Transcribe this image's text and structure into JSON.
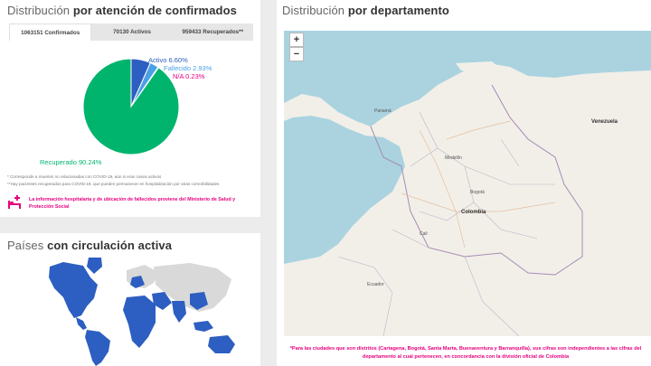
{
  "distribucion": {
    "title_light": "Distribución ",
    "title_bold": "por atención de confirmados",
    "tabs": [
      {
        "label": "1063151 Confirmados",
        "active": true
      },
      {
        "label": "70130 Activos",
        "active": false
      },
      {
        "label": "959433 Recuperados**",
        "active": false
      }
    ],
    "chart_data": {
      "type": "pie",
      "slices": [
        {
          "label": "Recuperado",
          "value": 90.24,
          "display": "Recuperado 90.24%",
          "color": "#00b46e"
        },
        {
          "label": "Activo",
          "value": 6.6,
          "display": "Activo 6.60%",
          "color": "#2d5ec1"
        },
        {
          "label": "Fallecido",
          "value": 2.93,
          "display": "Fallecido 2.93%",
          "color": "#4aa0e6"
        },
        {
          "label": "N/A",
          "value": 0.23,
          "display": "N/A 0.23%",
          "color": "#e6007e"
        }
      ]
    },
    "footnotes": [
      "* Corresponde a muertes no relacionadas con COVID-19, aún si eran casos activos",
      "**Hay pacientes recuperados para COVID-19, que pueden permanecer en hospitalización por otras comorbilidades"
    ],
    "info_text": "La información hospitalaria y de ubicación de fallecidos proviene del Ministerio de Salud y Protección Social",
    "info_icon": "hospital-bed-icon",
    "colors": {
      "accent": "#e6007e"
    }
  },
  "paises": {
    "title_light": "Países ",
    "title_bold": "con circulación activa",
    "map_colors": {
      "active": "#2d5ec1",
      "inactive": "#d9d9d9"
    }
  },
  "mapa": {
    "title_light": "Distribución ",
    "title_bold": "por departamento",
    "zoom_in": "+",
    "zoom_out": "−",
    "labels": {
      "venezuela": "Venezuela",
      "colombia": "Colombia",
      "panama": "Panamá",
      "ecuador": "Ecuador",
      "medellin": "Medellín",
      "cali": "Cali",
      "bogota": "Bogotá"
    },
    "footer": "*Para las ciudades que son distritos (Cartagena, Bogotá, Santa Marta, Buenaventura y Barranquilla), sus cifras son independientes a las cifras del departamento al cual pertenecen, en concordancia con la división oficial de Colombia"
  }
}
